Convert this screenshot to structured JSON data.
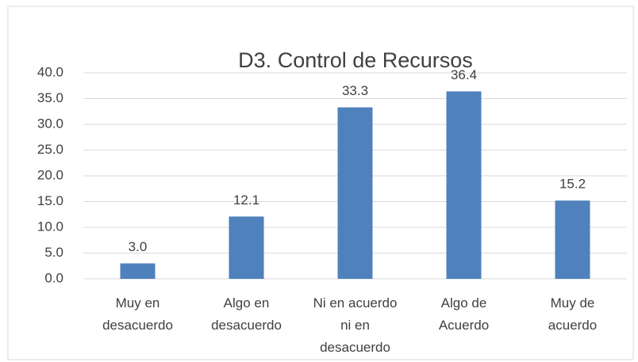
{
  "chart_data": {
    "type": "bar",
    "title": "D3. Control de Recursos",
    "categories": [
      "Muy en desacuerdo",
      "Algo en desacuerdo",
      "Ni en acuerdo ni en desacuerdo",
      "Algo de Acuerdo",
      "Muy de acuerdo"
    ],
    "values": [
      3.0,
      12.1,
      33.3,
      36.4,
      15.2
    ],
    "value_labels": [
      "3.0",
      "12.1",
      "33.3",
      "36.4",
      "15.2"
    ],
    "color": "#4f81bd",
    "ylim": [
      0,
      40
    ],
    "yticks": [
      {
        "value": 0,
        "label": "0.0"
      },
      {
        "value": 5,
        "label": "5.0"
      },
      {
        "value": 10,
        "label": "10.0"
      },
      {
        "value": 15,
        "label": "15.0"
      },
      {
        "value": 20,
        "label": "20.0"
      },
      {
        "value": 25,
        "label": "25.0"
      },
      {
        "value": 30,
        "label": "30.0"
      },
      {
        "value": 35,
        "label": "35.0"
      },
      {
        "value": 40,
        "label": "40.0"
      }
    ],
    "grid": true
  }
}
